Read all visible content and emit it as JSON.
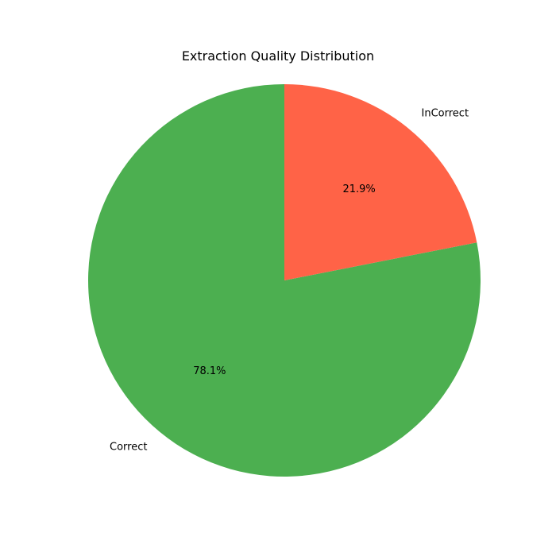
{
  "chart_data": {
    "type": "pie",
    "title": "Extraction Quality Distribution",
    "slices": [
      {
        "label": "Correct",
        "value": 78.1,
        "pct_label": "78.1%",
        "color": "#4caf50"
      },
      {
        "label": "InCorrect",
        "value": 21.9,
        "pct_label": "21.9%",
        "color": "#ff6347"
      }
    ],
    "start_angle_deg": 90,
    "direction": "counterclockwise"
  }
}
